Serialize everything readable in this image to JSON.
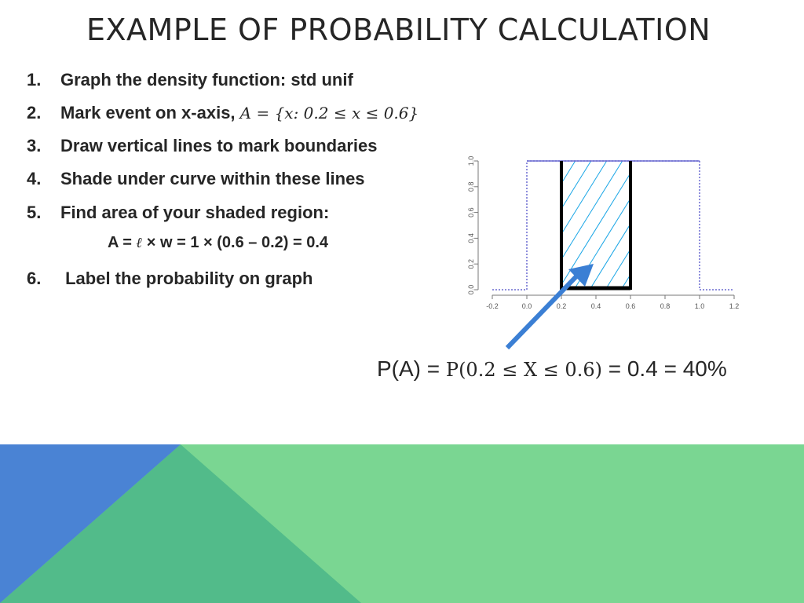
{
  "title": "EXAMPLE OF PROBABILITY CALCULATION",
  "steps": [
    {
      "num": "1.",
      "text": "Graph the density function: std unif",
      "math": ""
    },
    {
      "num": "2.",
      "text": "Mark event on x-axis, ",
      "math": "A = {x: 0.2 ≤ x ≤ 0.6}"
    },
    {
      "num": "3.",
      "text": "Draw vertical lines to mark boundaries",
      "math": ""
    },
    {
      "num": "4.",
      "text": "Shade under curve within these lines",
      "math": ""
    },
    {
      "num": "5.",
      "text": "Find area of your shaded region:",
      "math": ""
    },
    {
      "num": "6.",
      "text": " Label the probability on graph",
      "math": ""
    }
  ],
  "formula": {
    "prefix": "A = ",
    "ell": "ℓ",
    "rest": " × w = 1 × (0.6 – 0.2) = 0.4"
  },
  "probability": {
    "prefix": "P(A) = ",
    "math": "P(0.2 ≤ X ≤ 0.6)",
    "suffix": " = 0.4 = 40%"
  },
  "chart_data": {
    "type": "line",
    "title": "",
    "xlabel": "",
    "ylabel": "",
    "xlim": [
      -0.2,
      1.2
    ],
    "ylim": [
      0.0,
      1.0
    ],
    "x_ticks": [
      "-0.2",
      "0.0",
      "0.2",
      "0.4",
      "0.6",
      "0.8",
      "1.0",
      "1.2"
    ],
    "y_ticks": [
      "0.0",
      "0.2",
      "0.4",
      "0.6",
      "0.8",
      "1.0"
    ],
    "density": {
      "x": [
        -0.2,
        0.0,
        0.0,
        1.0,
        1.0,
        1.2
      ],
      "y": [
        0.0,
        0.0,
        1.0,
        1.0,
        0.0,
        0.0
      ]
    },
    "shaded_event": {
      "from": 0.2,
      "to": 0.6,
      "height": 1.0,
      "area": 0.4
    },
    "colors": {
      "density": "#6a6ad0",
      "boundary": "#000000",
      "hatch": "#1aa6e6",
      "arrow": "#3b7fd4"
    }
  },
  "theme": {
    "blue": "#4a83d4",
    "teal": "#52bb8a",
    "green": "#7ad692"
  }
}
